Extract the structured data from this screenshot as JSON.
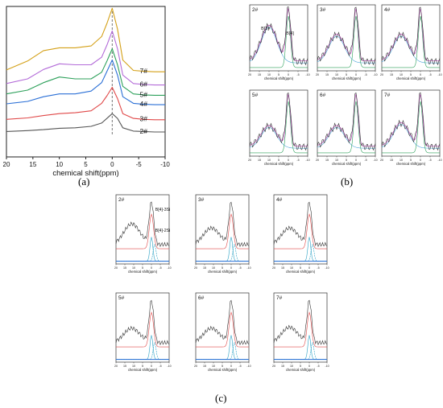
{
  "chart_data": [
    {
      "panel": "(a)",
      "type": "line",
      "xlabel": "chemical shift(ppm)",
      "xlim": [
        20,
        -10
      ],
      "x_ticks": [
        20,
        15,
        10,
        5,
        0,
        -5,
        -10
      ],
      "reference_line_x": 0,
      "series": [
        {
          "name": "7#",
          "color": "#d4a017",
          "baseline": 9.0,
          "x": [
            20,
            16,
            13,
            10,
            7,
            4,
            2,
            1,
            0,
            -1,
            -2,
            -4,
            -6,
            -8,
            -10
          ],
          "y": [
            0.25,
            1.2,
            2.3,
            2.6,
            2.6,
            2.8,
            3.8,
            5.2,
            6.8,
            4.6,
            1.3,
            0.2,
            0.1,
            0.05,
            0.05
          ]
        },
        {
          "name": "6#",
          "color": "#b36bd8",
          "baseline": 7.6,
          "x": [
            20,
            16,
            13,
            10,
            7,
            4,
            2,
            1,
            0,
            -1,
            -2,
            -4,
            -6,
            -8,
            -10
          ],
          "y": [
            0.2,
            0.7,
            1.7,
            2.3,
            2.2,
            2.2,
            3.0,
            4.3,
            5.8,
            3.9,
            1.1,
            0.2,
            0.1,
            0.05,
            0.05
          ]
        },
        {
          "name": "5#",
          "color": "#2ca05a",
          "baseline": 6.5,
          "x": [
            20,
            16,
            13,
            10,
            7,
            4,
            2,
            1,
            0,
            -1,
            -2,
            -4,
            -6,
            -8,
            -10
          ],
          "y": [
            0.2,
            0.6,
            1.4,
            2.0,
            1.8,
            1.8,
            2.5,
            3.7,
            5.0,
            3.3,
            1.0,
            0.2,
            0.1,
            0.05,
            0.05
          ]
        },
        {
          "name": "4#",
          "color": "#2a6fd6",
          "baseline": 5.5,
          "x": [
            20,
            16,
            13,
            10,
            7,
            4,
            2,
            1,
            0,
            -1,
            -2,
            -4,
            -6,
            -8,
            -10
          ],
          "y": [
            0.15,
            0.4,
            0.9,
            1.2,
            1.2,
            1.5,
            2.4,
            3.6,
            4.8,
            3.2,
            0.9,
            0.2,
            0.1,
            0.05,
            0.05
          ]
        },
        {
          "name": "3#",
          "color": "#e04848",
          "baseline": 3.9,
          "x": [
            20,
            16,
            13,
            10,
            7,
            4,
            2,
            1,
            0,
            -1,
            -2,
            -4,
            -6,
            -8,
            -10
          ],
          "y": [
            0.1,
            0.25,
            0.5,
            0.7,
            0.8,
            1.0,
            1.8,
            2.6,
            3.5,
            2.3,
            0.7,
            0.2,
            0.1,
            0.05,
            0.05
          ]
        },
        {
          "name": "2#",
          "color": "#555555",
          "baseline": 2.6,
          "x": [
            20,
            16,
            13,
            10,
            7,
            4,
            2,
            1,
            0,
            -1,
            -2,
            -4,
            -6,
            -8,
            -10
          ],
          "y": [
            0.1,
            0.2,
            0.3,
            0.45,
            0.5,
            0.65,
            1.0,
            1.5,
            2.0,
            1.5,
            0.5,
            0.15,
            0.1,
            0.05,
            0.05
          ]
        }
      ]
    },
    {
      "panel": "(b)",
      "type": "line",
      "xlabel": "chemical shift(ppm)",
      "xlim": [
        20,
        -10
      ],
      "x_ticks": [
        20,
        15,
        10,
        5,
        0,
        -5,
        -10
      ],
      "subplots": [
        {
          "label": "2#",
          "annotations": [
            "B[3]",
            "B[4]"
          ]
        },
        {
          "label": "3#"
        },
        {
          "label": "4#"
        },
        {
          "label": "5#"
        },
        {
          "label": "6#"
        },
        {
          "label": "7#"
        }
      ]
    },
    {
      "panel": "(c)",
      "type": "line",
      "xlabel": "chemical shift(ppm)",
      "xlim": [
        20,
        -10
      ],
      "x_ticks": [
        20,
        15,
        10,
        5,
        0,
        -5,
        -10
      ],
      "subplots": [
        {
          "label": "2#",
          "annotations": [
            "B[4]-3Si",
            "B[4]-2Si"
          ]
        },
        {
          "label": "3#"
        },
        {
          "label": "4#"
        },
        {
          "label": "5#"
        },
        {
          "label": "6#"
        },
        {
          "label": "7#"
        }
      ]
    }
  ],
  "labels": {
    "a": "(a)",
    "b": "(b)",
    "c": "(c)"
  }
}
